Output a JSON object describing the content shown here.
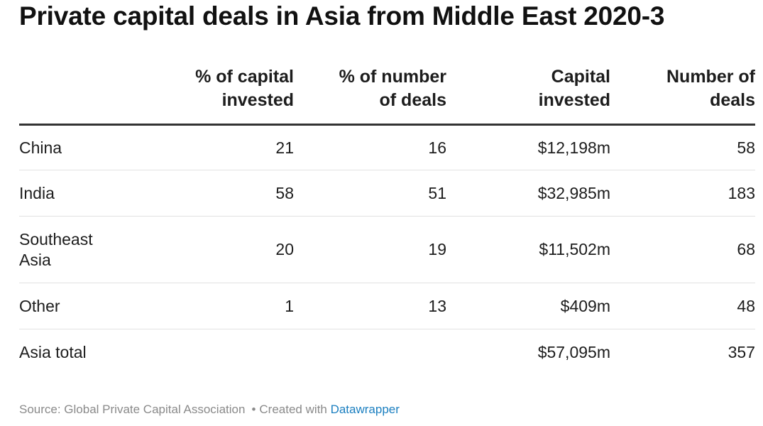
{
  "title": "Private capital deals in Asia from Middle East 2020-3",
  "chart_data": {
    "type": "table",
    "title": "Private capital deals in Asia from Middle East 2020-3",
    "columns": [
      "",
      "% of capital invested",
      "% of number of deals",
      "Capital invested",
      "Number of deals"
    ],
    "rows": [
      {
        "label": "China",
        "pct_capital": "21",
        "pct_deals": "16",
        "capital": "$12,198m",
        "deals": "58"
      },
      {
        "label": "India",
        "pct_capital": "58",
        "pct_deals": "51",
        "capital": "$32,985m",
        "deals": "183"
      },
      {
        "label": "Southeast Asia",
        "pct_capital": "20",
        "pct_deals": "19",
        "capital": "$11,502m",
        "deals": "68"
      },
      {
        "label": "Other",
        "pct_capital": "1",
        "pct_deals": "13",
        "capital": "$409m",
        "deals": "48"
      },
      {
        "label": "Asia total",
        "pct_capital": "",
        "pct_deals": "",
        "capital": "$57,095m",
        "deals": "357"
      }
    ]
  },
  "header": {
    "col1_line1": "% of capital",
    "col1_line2": "invested",
    "col2_line1": "% of number",
    "col2_line2": "of deals",
    "col3_line1": "Capital",
    "col3_line2": "invested",
    "col4_line1": "Number of",
    "col4_line2": "deals"
  },
  "rows": [
    {
      "label": "China",
      "label_line1": "China",
      "label_line2": "",
      "pct_capital": "21",
      "pct_deals": "16",
      "capital": "$12,198m",
      "deals": "58"
    },
    {
      "label": "India",
      "label_line1": "India",
      "label_line2": "",
      "pct_capital": "58",
      "pct_deals": "51",
      "capital": "$32,985m",
      "deals": "183"
    },
    {
      "label": "Southeast Asia",
      "label_line1": "Southeast",
      "label_line2": "Asia",
      "pct_capital": "20",
      "pct_deals": "19",
      "capital": "$11,502m",
      "deals": "68"
    },
    {
      "label": "Other",
      "label_line1": "Other",
      "label_line2": "",
      "pct_capital": "1",
      "pct_deals": "13",
      "capital": "$409m",
      "deals": "48"
    },
    {
      "label": "Asia total",
      "label_line1": "Asia total",
      "label_line2": "",
      "pct_capital": "",
      "pct_deals": "",
      "capital": "$57,095m",
      "deals": "357"
    }
  ],
  "footer": {
    "source": "Source: Global Private Capital Association",
    "separator": "•",
    "created_with": "Created with",
    "link_text": "Datawrapper"
  },
  "colors": {
    "text": "#1d1d1d",
    "muted": "#8a8a8a",
    "link": "#1b7fc0",
    "header_rule": "#333333",
    "row_rule": "#e2e2e2"
  }
}
